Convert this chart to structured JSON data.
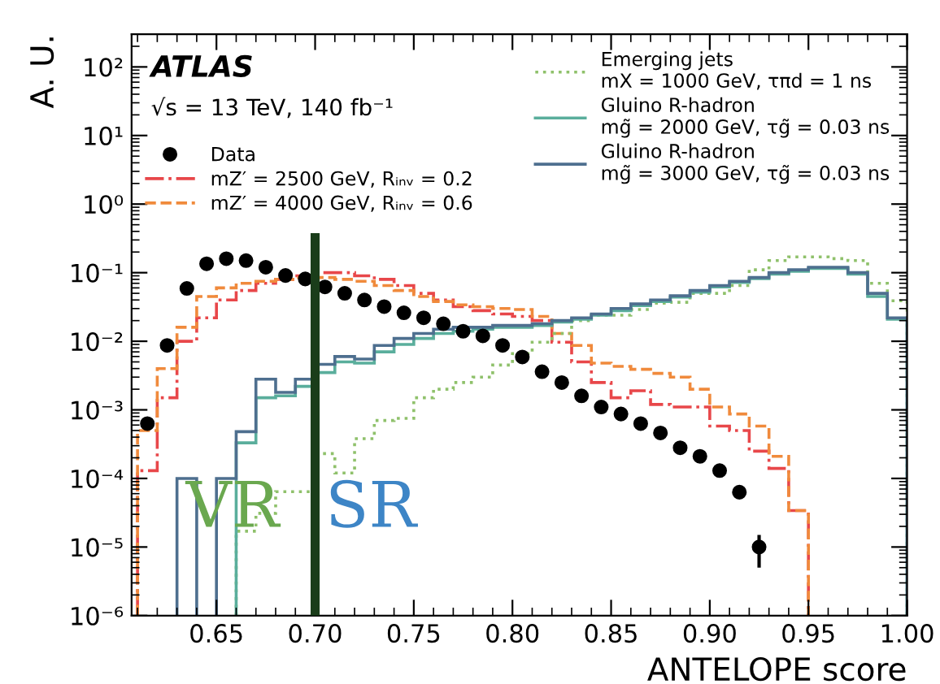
{
  "chart_data": {
    "type": "histogram",
    "xlabel": "ANTELOPE score",
    "ylabel": "A. U.",
    "annotations": [
      "ATLAS",
      "√s = 13 TeV, 140 fb⁻¹",
      "VR",
      "SR"
    ],
    "series": [
      {
        "name": "Data",
        "type": "scatter",
        "color": "#000000",
        "marker": "circle",
        "x": [
          0.615,
          0.625,
          0.635,
          0.645,
          0.655,
          0.665,
          0.675,
          0.685,
          0.695,
          0.705,
          0.715,
          0.725,
          0.735,
          0.745,
          0.755,
          0.765,
          0.775,
          0.785,
          0.795,
          0.805,
          0.815,
          0.825,
          0.835,
          0.845,
          0.855,
          0.865,
          0.875,
          0.885,
          0.895,
          0.905,
          0.915,
          0.925
        ],
        "values": [
          0.00063,
          0.0087,
          0.059,
          0.135,
          0.16,
          0.15,
          0.12,
          0.091,
          0.081,
          0.062,
          0.05,
          0.04,
          0.032,
          0.026,
          0.022,
          0.018,
          0.014,
          0.012,
          0.0087,
          0.0059,
          0.0036,
          0.0025,
          0.0016,
          0.0011,
          0.00087,
          0.00063,
          0.00046,
          0.00028,
          0.00021,
          0.00013,
          6.3e-05,
          1e-05
        ],
        "errors": [
          null,
          null,
          null,
          null,
          null,
          null,
          null,
          null,
          null,
          null,
          null,
          null,
          null,
          null,
          null,
          null,
          null,
          null,
          null,
          null,
          null,
          null,
          null,
          null,
          null,
          null,
          null,
          null,
          null,
          null,
          8e-06,
          5e-06
        ]
      },
      {
        "name": "mZ′ = 2500 GeV, Rᵢₙᵥ = 0.2",
        "color": "#e8474a",
        "line_style": "dashdot",
        "bins": [
          0.61,
          0.62,
          0.63,
          0.64,
          0.65,
          0.66,
          0.67,
          0.68,
          0.69,
          0.7,
          0.71,
          0.72,
          0.73,
          0.74,
          0.75,
          0.76,
          0.77,
          0.78,
          0.79,
          0.8,
          0.81,
          0.82,
          0.83,
          0.84,
          0.85,
          0.86,
          0.87,
          0.88,
          0.89,
          0.9,
          0.91,
          0.92,
          0.93,
          0.94,
          0.95
        ],
        "values": [
          0.00013,
          0.0015,
          0.01,
          0.022,
          0.04,
          0.055,
          0.07,
          0.08,
          0.09,
          0.1,
          0.1,
          0.09,
          0.08,
          0.065,
          0.05,
          0.04,
          0.032,
          0.028,
          0.025,
          0.023,
          0.02,
          0.0097,
          0.005,
          0.0025,
          0.0015,
          0.0019,
          0.0012,
          0.0011,
          0.0011,
          0.00058,
          0.0005,
          0.00025,
          0.00014,
          3.4e-05
        ]
      },
      {
        "name": "mZ′ = 4000 GeV, Rᵢₙᵥ = 0.6",
        "color": "#f08a3c",
        "line_style": "dashed",
        "bins": [
          0.61,
          0.62,
          0.63,
          0.64,
          0.65,
          0.66,
          0.67,
          0.68,
          0.69,
          0.7,
          0.71,
          0.72,
          0.73,
          0.74,
          0.75,
          0.76,
          0.77,
          0.78,
          0.79,
          0.8,
          0.81,
          0.82,
          0.83,
          0.84,
          0.85,
          0.86,
          0.87,
          0.88,
          0.89,
          0.9,
          0.91,
          0.92,
          0.93,
          0.94,
          0.95
        ],
        "values": [
          0.0005,
          0.004,
          0.016,
          0.045,
          0.06,
          0.07,
          0.075,
          0.08,
          0.085,
          0.085,
          0.08,
          0.075,
          0.065,
          0.055,
          0.045,
          0.038,
          0.034,
          0.032,
          0.03,
          0.029,
          0.023,
          0.013,
          0.0087,
          0.0048,
          0.0043,
          0.0039,
          0.0034,
          0.003,
          0.002,
          0.0011,
          0.00087,
          0.00058,
          0.00021,
          3.4e-05
        ]
      },
      {
        "name": "Emerging jets\nmX = 1000 GeV, τπd = 1 ns",
        "color": "#8fc16b",
        "line_style": "dotted",
        "bins": [
          0.66,
          0.67,
          0.68,
          0.69,
          0.7,
          0.71,
          0.72,
          0.73,
          0.74,
          0.75,
          0.76,
          0.77,
          0.78,
          0.79,
          0.8,
          0.81,
          0.82,
          0.83,
          0.84,
          0.85,
          0.86,
          0.87,
          0.88,
          0.89,
          0.9,
          0.91,
          0.92,
          0.93,
          0.94,
          0.95,
          0.96,
          0.97,
          0.98,
          0.99,
          1.0
        ],
        "values": [
          1.7e-05,
          3.1e-05,
          6.4e-05,
          6.4e-05,
          0.00023,
          0.00012,
          0.00038,
          0.0007,
          0.00075,
          0.0015,
          0.002,
          0.0025,
          0.003,
          0.0045,
          0.0066,
          0.0097,
          0.013,
          0.02,
          0.024,
          0.024,
          0.029,
          0.036,
          0.037,
          0.05,
          0.05,
          0.065,
          0.11,
          0.15,
          0.17,
          0.17,
          0.16,
          0.15,
          0.07,
          0.039
        ]
      },
      {
        "name": "Gluino R-hadron\nmg̃ = 2000 GeV, τg̃ = 0.03 ns",
        "color": "#5aae9c",
        "line_style": "solid",
        "bins": [
          0.66,
          0.67,
          0.68,
          0.69,
          0.7,
          0.71,
          0.72,
          0.73,
          0.74,
          0.75,
          0.76,
          0.77,
          0.78,
          0.79,
          0.8,
          0.81,
          0.82,
          0.83,
          0.84,
          0.85,
          0.86,
          0.87,
          0.88,
          0.89,
          0.9,
          0.91,
          0.92,
          0.93,
          0.94,
          0.95,
          0.96,
          0.97,
          0.98,
          0.99,
          1.0
        ],
        "values": [
          0.00033,
          0.0015,
          0.0016,
          0.0022,
          0.0035,
          0.005,
          0.0048,
          0.007,
          0.009,
          0.011,
          0.013,
          0.014,
          0.015,
          0.016,
          0.016,
          0.017,
          0.019,
          0.021,
          0.024,
          0.028,
          0.033,
          0.038,
          0.044,
          0.052,
          0.062,
          0.072,
          0.082,
          0.095,
          0.105,
          0.115,
          0.115,
          0.095,
          0.045,
          0.021
        ]
      },
      {
        "name": "Gluino R-hadron\nmg̃ = 3000 GeV, τg̃ = 0.03 ns",
        "color": "#4e6f8f",
        "line_style": "solid",
        "bins": [
          0.63,
          0.64,
          0.65,
          0.66,
          0.67,
          0.68,
          0.69,
          0.7,
          0.71,
          0.72,
          0.73,
          0.74,
          0.75,
          0.76,
          0.77,
          0.78,
          0.79,
          0.8,
          0.81,
          0.82,
          0.83,
          0.84,
          0.85,
          0.86,
          0.87,
          0.88,
          0.89,
          0.9,
          0.91,
          0.92,
          0.93,
          0.94,
          0.95,
          0.96,
          0.97,
          0.98,
          0.99,
          1.0
        ],
        "values": [
          0.0001,
          null,
          0.0001,
          0.00048,
          0.0028,
          0.0018,
          0.0028,
          0.0046,
          0.006,
          0.0055,
          0.0087,
          0.011,
          0.013,
          0.015,
          0.016,
          0.016,
          0.017,
          0.017,
          0.018,
          0.02,
          0.022,
          0.025,
          0.03,
          0.035,
          0.04,
          0.046,
          0.055,
          0.065,
          0.075,
          0.085,
          0.1,
          0.11,
          0.12,
          0.12,
          0.1,
          0.05,
          0.022
        ]
      }
    ],
    "ref_lines": [
      {
        "axis": "x",
        "value": 0.7,
        "color": "#1a3d1a"
      }
    ],
    "log": "y",
    "xlim": [
      0.607,
      1.0
    ],
    "ylim": [
      1e-06,
      300
    ],
    "xticks": [
      {
        "value": 0.65,
        "label": "0.65"
      },
      {
        "value": 0.7,
        "label": "0.70"
      },
      {
        "value": 0.75,
        "label": "0.75"
      },
      {
        "value": 0.8,
        "label": "0.80"
      },
      {
        "value": 0.85,
        "label": "0.85"
      },
      {
        "value": 0.9,
        "label": "0.90"
      },
      {
        "value": 0.95,
        "label": "0.95"
      },
      {
        "value": 1.0,
        "label": "1.00"
      }
    ],
    "yticks": [
      {
        "value": 1e-06,
        "label": "10⁻⁶"
      },
      {
        "value": 1e-05,
        "label": "10⁻⁵"
      },
      {
        "value": 0.0001,
        "label": "10⁻⁴"
      },
      {
        "value": 0.001,
        "label": "10⁻³"
      },
      {
        "value": 0.01,
        "label": "10⁻²"
      },
      {
        "value": 0.1,
        "label": "10⁻¹"
      },
      {
        "value": 1,
        "label": "10⁰"
      },
      {
        "value": 10,
        "label": "10¹"
      },
      {
        "value": 100,
        "label": "10²"
      }
    ],
    "grid": false,
    "legend": "top"
  }
}
